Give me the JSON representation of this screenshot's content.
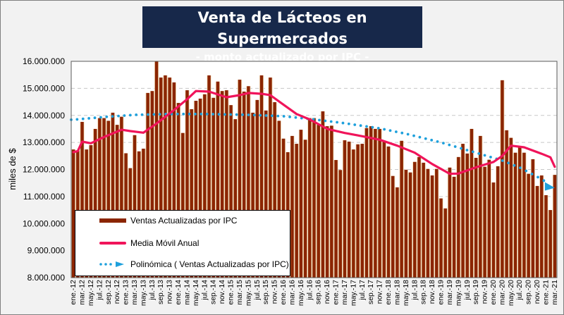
{
  "title": {
    "main": "Venta de Lácteos en Supermercados",
    "sub": "- monto actualizado por IPC -"
  },
  "legend": {
    "items": [
      {
        "label": "Ventas Actualizadas por IPC",
        "symbol": "bar",
        "color": "#8b2500"
      },
      {
        "label": "Media Móvil Anual",
        "symbol": "line",
        "color": "#f0145a"
      },
      {
        "label": "Polinómica ( Ventas Actualizadas por IPC)",
        "symbol": "dotted-arrow",
        "color": "#1ea0dc"
      }
    ]
  },
  "chart_data": {
    "type": "bar",
    "title": "Venta de Lácteos en Supermercados - monto actualizado por IPC -",
    "xlabel": "",
    "ylabel": "miles de $",
    "ylim": [
      8000000,
      16000000
    ],
    "yticks": [
      8000000,
      9000000,
      10000000,
      11000000,
      12000000,
      13000000,
      14000000,
      15000000,
      16000000
    ],
    "ytick_labels": [
      "8.000.000",
      "9.000.000",
      "10.000.000",
      "11.000.000",
      "12.000.000",
      "13.000.000",
      "14.000.000",
      "15.000.000",
      "16.000.000"
    ],
    "grid": "horizontal-dashed",
    "legend_position": "bottom-left-inside",
    "x_start": "ene.-12",
    "x_end": "mar.-21",
    "xtick_every": 2,
    "xtick_labels": [
      "ene.-12",
      "mar.-12",
      "may.-12",
      "jul.-12",
      "sep.-12",
      "nov.-12",
      "ene.-13",
      "mar.-13",
      "may.-13",
      "jul.-13",
      "sep.-13",
      "nov.-13",
      "ene.-14",
      "mar.-14",
      "may.-14",
      "jul.-14",
      "sep.-14",
      "nov.-14",
      "ene.-15",
      "mar.-15",
      "may.-15",
      "jul.-15",
      "sep.-15",
      "nov.-15",
      "ene.-16",
      "mar.-16",
      "may.-16",
      "jul.-16",
      "sep.-16",
      "nov.-16",
      "ene.-17",
      "mar.-17",
      "may.-17",
      "jul.-17",
      "sep.-17",
      "nov.-17",
      "ene.-18",
      "mar.-18",
      "may.-18",
      "jul.-18",
      "sep.-18",
      "nov.-18",
      "ene.-19",
      "mar.-19",
      "may.-19",
      "jul.-19",
      "sep.-19",
      "nov.-19",
      "ene.-20",
      "mar.-20",
      "may.-20",
      "jul.-20",
      "sep.-20",
      "nov.-20",
      "ene.-21",
      "mar.-21"
    ],
    "series": [
      {
        "name": "Ventas Actualizadas por IPC",
        "type": "bar",
        "color": "#8b2500",
        "values": [
          12740000,
          12700000,
          13760000,
          12740000,
          12900000,
          13500000,
          13900000,
          13900000,
          13800000,
          14100000,
          13650000,
          13950000,
          12600000,
          12050000,
          13270000,
          12670000,
          12770000,
          14830000,
          14900000,
          16000000,
          15400000,
          15480000,
          15400000,
          15220000,
          14460000,
          13350000,
          14930000,
          14230000,
          14540000,
          14620000,
          14780000,
          15480000,
          14650000,
          15250000,
          14900000,
          14930000,
          14380000,
          13860000,
          15320000,
          14880000,
          15080000,
          14100000,
          14570000,
          15480000,
          14180000,
          15400000,
          14490000,
          13800000,
          13140000,
          12640000,
          13240000,
          12950000,
          13470000,
          13100000,
          13900000,
          13900000,
          13650000,
          14150000,
          13600000,
          13620000,
          12350000,
          11980000,
          13080000,
          13030000,
          12740000,
          12930000,
          12950000,
          13530000,
          13600000,
          13500000,
          13500000,
          13030000,
          12850000,
          11760000,
          11340000,
          13060000,
          11990000,
          11890000,
          12280000,
          12460000,
          12250000,
          12020000,
          11780000,
          12020000,
          10930000,
          10560000,
          12070000,
          11730000,
          12460000,
          12950000,
          12590000,
          13500000,
          12430000,
          13240000,
          12100000,
          12360000,
          11520000,
          12120000,
          15300000,
          13450000,
          13170000,
          12620000,
          12820000,
          12620000,
          11840000,
          12380000,
          11390000,
          11780000,
          11050000,
          10500000,
          11800000
        ]
      },
      {
        "name": "Media Móvil Anual",
        "type": "line",
        "color": "#f0145a",
        "points": [
          [
            0,
            12640000
          ],
          [
            1,
            12680000
          ],
          [
            2,
            13030000
          ],
          [
            4,
            12970000
          ],
          [
            7,
            13200000
          ],
          [
            11,
            13470000
          ],
          [
            13,
            13420000
          ],
          [
            16,
            13360000
          ],
          [
            19,
            13700000
          ],
          [
            23,
            14200000
          ],
          [
            26,
            14600000
          ],
          [
            28,
            14900000
          ],
          [
            31,
            14880000
          ],
          [
            35,
            14670000
          ],
          [
            38,
            14750000
          ],
          [
            40,
            14830000
          ],
          [
            43,
            14800000
          ],
          [
            45,
            14750000
          ],
          [
            48,
            14400000
          ],
          [
            51,
            14050000
          ],
          [
            54,
            13850000
          ],
          [
            58,
            13500000
          ],
          [
            62,
            13350000
          ],
          [
            66,
            13230000
          ],
          [
            70,
            13100000
          ],
          [
            74,
            12880000
          ],
          [
            78,
            12620000
          ],
          [
            82,
            12200000
          ],
          [
            86,
            11840000
          ],
          [
            88,
            11850000
          ],
          [
            92,
            12080000
          ],
          [
            96,
            12280000
          ],
          [
            98,
            12500000
          ],
          [
            100,
            12880000
          ],
          [
            103,
            12820000
          ],
          [
            107,
            12580000
          ],
          [
            109,
            12450000
          ],
          [
            110,
            12100000
          ]
        ]
      },
      {
        "name": "Polinómica ( Ventas Actualizadas por IPC)",
        "type": "trendline-polynomial",
        "color": "#1ea0dc",
        "points": [
          [
            0,
            13840000
          ],
          [
            7,
            13940000
          ],
          [
            14,
            14020000
          ],
          [
            22,
            14050000
          ],
          [
            30,
            14050000
          ],
          [
            40,
            14020000
          ],
          [
            48,
            13970000
          ],
          [
            55,
            13850000
          ],
          [
            62,
            13710000
          ],
          [
            70,
            13520000
          ],
          [
            76,
            13320000
          ],
          [
            84,
            13000000
          ],
          [
            92,
            12620000
          ],
          [
            98,
            12330000
          ],
          [
            102,
            12070000
          ],
          [
            106,
            11730000
          ],
          [
            110,
            11350000
          ]
        ]
      }
    ]
  }
}
